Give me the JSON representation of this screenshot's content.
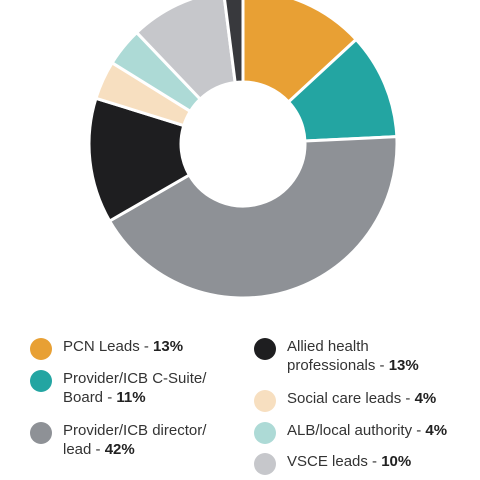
{
  "chart_data": {
    "type": "pie",
    "variant": "donut",
    "slices": [
      {
        "label": "PCN Leads",
        "value": 13,
        "color": "#E8A034"
      },
      {
        "label": "Provider/ICB C-Suite/ Board",
        "value": 11,
        "color": "#23A5A2"
      },
      {
        "label": "Provider/ICB director/ lead",
        "value": 42,
        "color": "#8E9196"
      },
      {
        "label": "Allied health professionals",
        "value": 13,
        "color": "#1E1E20"
      },
      {
        "label": "Social care leads",
        "value": 4,
        "color": "#F7DFC0"
      },
      {
        "label": "ALB/local authority",
        "value": 4,
        "color": "#ADDAD6"
      },
      {
        "label": "VSCE leads",
        "value": 10,
        "color": "#C6C7CB"
      },
      {
        "label": "",
        "value": 2,
        "color": "#38393D"
      }
    ],
    "legend_placement": "bottom"
  },
  "legend": {
    "items": [
      {
        "line1": "PCN Leads -",
        "line2": "",
        "pct": "13%",
        "color": "#E8A034"
      },
      {
        "line1": "Provider/ICB C-Suite/",
        "line2": "Board -",
        "pct": "11%",
        "color": "#23A5A2"
      },
      {
        "line1": "Provider/ICB director/",
        "line2": "lead -",
        "pct": "42%",
        "color": "#8E9196"
      },
      {
        "line1": "Allied health",
        "line2": "professionals -",
        "pct": "13%",
        "color": "#1E1E20"
      },
      {
        "line1": "Social care leads -",
        "line2": "",
        "pct": "4%",
        "color": "#F7DFC0"
      },
      {
        "line1": "ALB/local authority -",
        "line2": "",
        "pct": "4%",
        "color": "#ADDAD6"
      },
      {
        "line1": "VSCE leads -",
        "line2": "",
        "pct": "10%",
        "color": "#C6C7CB"
      }
    ]
  }
}
